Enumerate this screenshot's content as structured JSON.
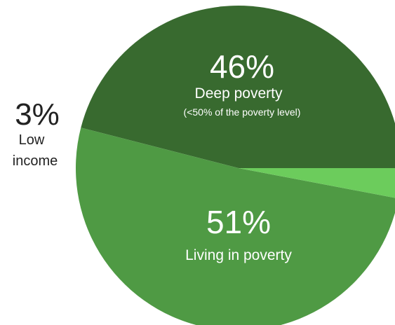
{
  "chart_data": {
    "type": "pie",
    "slices": [
      {
        "key": "deep",
        "value": 46,
        "percent_label": "46%",
        "label": "Deep poverty",
        "note": "(<50% of the poverty level)",
        "color": "#386a2f"
      },
      {
        "key": "living",
        "value": 51,
        "percent_label": "51%",
        "label": "Living in poverty",
        "note": "",
        "color": "#4f9a44"
      },
      {
        "key": "low",
        "value": 3,
        "percent_label": "3%",
        "label_lines": [
          "Low",
          "income"
        ],
        "color": "#6ccc5c"
      }
    ]
  }
}
